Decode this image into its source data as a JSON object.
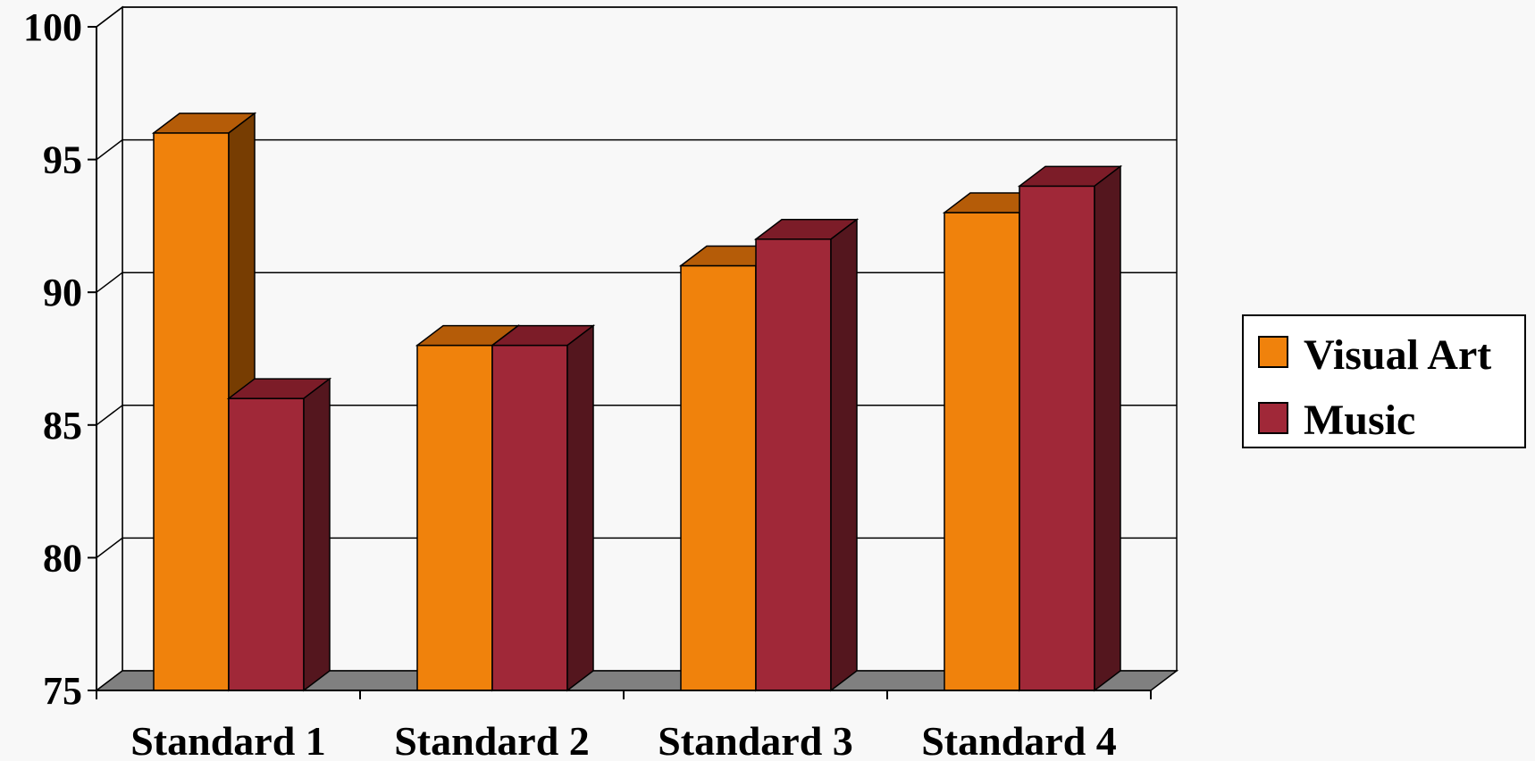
{
  "chart_data": {
    "type": "bar",
    "style": "3d-clustered-column",
    "title": "",
    "xlabel": "",
    "ylabel": "",
    "ylim": [
      75,
      100
    ],
    "yticks": [
      75,
      80,
      85,
      90,
      95,
      100
    ],
    "grid": true,
    "legend_position": "right",
    "categories": [
      "Standard 1",
      "Standard 2",
      "Standard 3",
      "Standard 4"
    ],
    "series": [
      {
        "name": "Visual Art",
        "values": [
          96,
          88,
          91,
          93
        ],
        "color": "#f0820c",
        "top_color": "#b55c08",
        "side_color": "#773d02"
      },
      {
        "name": "Music",
        "values": [
          86,
          88,
          92,
          94
        ],
        "color": "#a02838",
        "top_color": "#7c1c28",
        "side_color": "#54161e"
      }
    ],
    "floor_color": "#808080",
    "background_color": "#f8f8f8"
  }
}
